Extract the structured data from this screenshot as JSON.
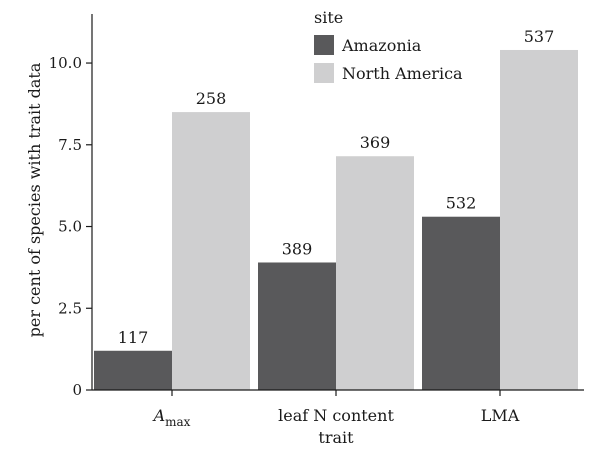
{
  "chart_data": {
    "type": "bar",
    "categories": [
      "A_max",
      "leaf N content",
      "LMA"
    ],
    "category_display": [
      {
        "main": "A",
        "sub": "max"
      },
      {
        "main": "leaf N content",
        "sub": ""
      },
      {
        "main": "LMA",
        "sub": ""
      }
    ],
    "series": [
      {
        "name": "Amazonia",
        "color": "#59595b",
        "values": [
          1.2,
          3.9,
          5.3
        ],
        "labels": [
          "117",
          "389",
          "532"
        ]
      },
      {
        "name": "North America",
        "color": "#cfcfd0",
        "values": [
          8.5,
          7.15,
          10.4
        ],
        "labels": [
          "258",
          "369",
          "537"
        ]
      }
    ],
    "xlabel": "trait",
    "ylabel": "per cent of species with trait data",
    "ylim": [
      0,
      11.5
    ],
    "yticks": [
      0,
      2.5,
      5.0,
      7.5,
      10.0
    ],
    "ytick_labels": [
      "0",
      "2.5",
      "5.0",
      "7.5",
      "10.0"
    ],
    "legend": {
      "title": "site",
      "position": "top-center"
    },
    "grid": false
  }
}
